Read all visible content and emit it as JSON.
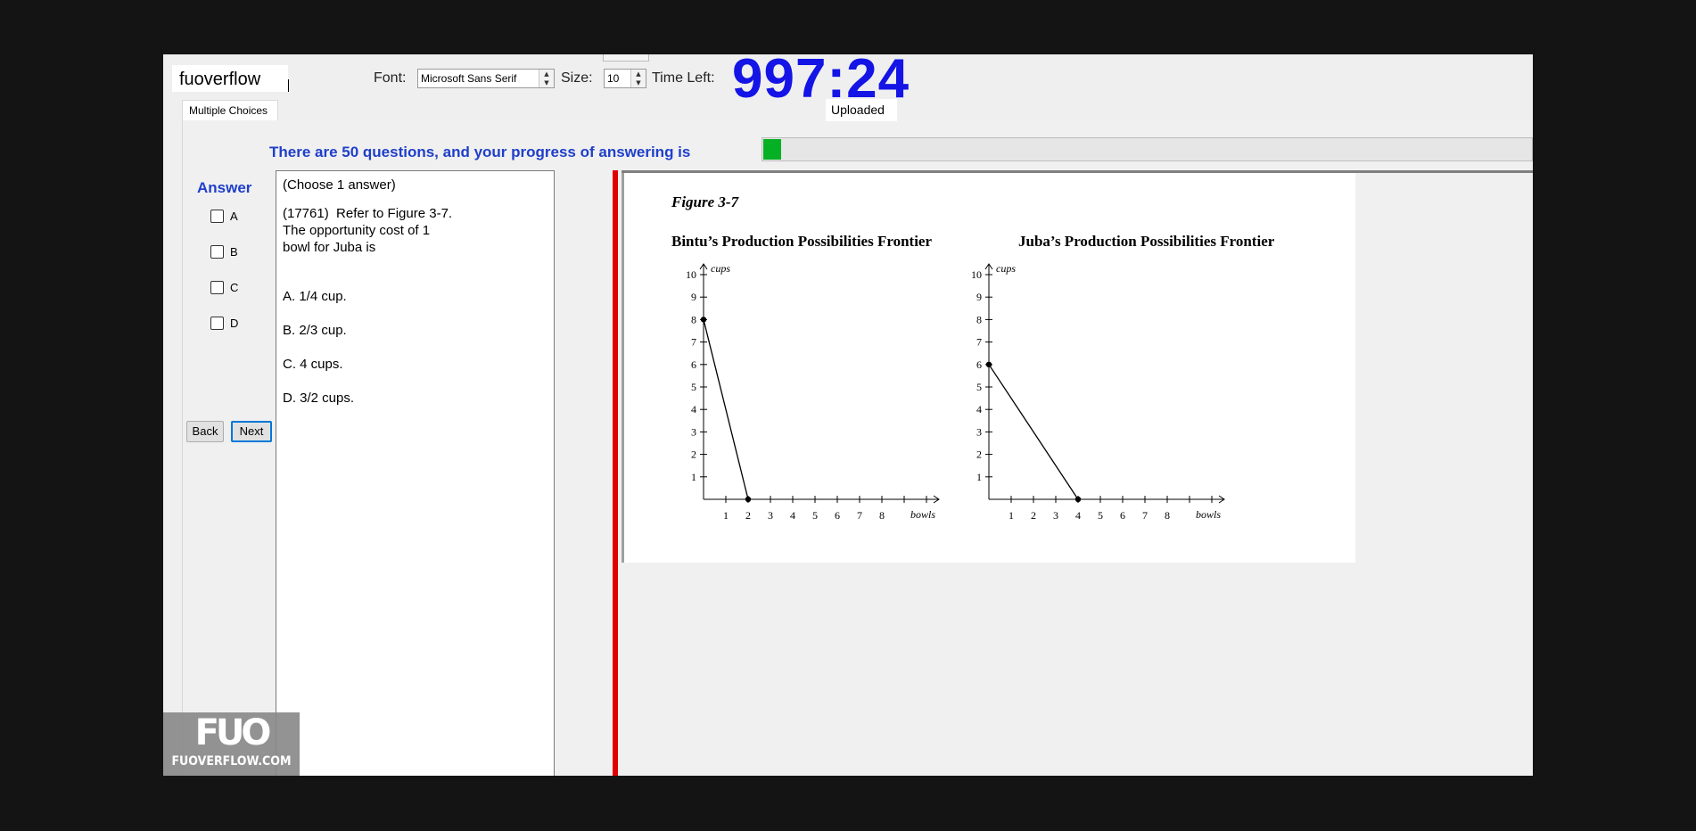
{
  "app": {
    "title": "fuoverflow",
    "font_label": "Font:",
    "font_value": "Microsoft Sans Serif",
    "size_label": "Size:",
    "size_value": "10",
    "time_left_label": "Time Left:",
    "timer": "997:24",
    "upload_status": "Uploaded"
  },
  "tabs": [
    {
      "label": "Multiple Choices",
      "active": true
    }
  ],
  "progress": {
    "text": "There are 50 questions, and your progress of answering is",
    "fraction": 0.02,
    "color": "#06b025"
  },
  "answer": {
    "title": "Answer",
    "options": [
      {
        "label": "A",
        "checked": false
      },
      {
        "label": "B",
        "checked": false
      },
      {
        "label": "C",
        "checked": false
      },
      {
        "label": "D",
        "checked": false
      }
    ]
  },
  "nav": {
    "back": "Back",
    "next": "Next"
  },
  "question": {
    "instruction": "(Choose 1 answer)",
    "text": "(17761)  Refer to Figure 3-7.\nThe opportunity cost of 1\nbowl for Juba is",
    "choices": [
      "A.  1/4 cup.",
      "B.  2/3 cup.",
      "C.  4 cups.",
      "D.  3/2 cups."
    ]
  },
  "figure": {
    "caption": "Figure 3-7",
    "chart_data": [
      {
        "type": "line",
        "title": "Bintu’s Production Possibilities Frontier",
        "xlabel": "bowls",
        "ylabel": "cups",
        "xlim": [
          0,
          10
        ],
        "ylim": [
          0,
          10
        ],
        "x_ticks": [
          1,
          2,
          3,
          4,
          5,
          6,
          7,
          8
        ],
        "y_ticks": [
          1,
          2,
          3,
          4,
          5,
          6,
          7,
          8,
          9,
          10
        ],
        "points": [
          {
            "x": 0,
            "y": 8
          },
          {
            "x": 2,
            "y": 0
          }
        ]
      },
      {
        "type": "line",
        "title": "Juba’s Production Possibilities Frontier",
        "xlabel": "bowls",
        "ylabel": "cups",
        "xlim": [
          0,
          10
        ],
        "ylim": [
          0,
          10
        ],
        "x_ticks": [
          1,
          2,
          3,
          4,
          5,
          6,
          7,
          8
        ],
        "y_ticks": [
          1,
          2,
          3,
          4,
          5,
          6,
          7,
          8,
          9,
          10
        ],
        "points": [
          {
            "x": 0,
            "y": 6
          },
          {
            "x": 4,
            "y": 0
          }
        ]
      }
    ]
  },
  "watermark": {
    "mark": "FUO",
    "site": "FUOVERFLOW.COM"
  }
}
